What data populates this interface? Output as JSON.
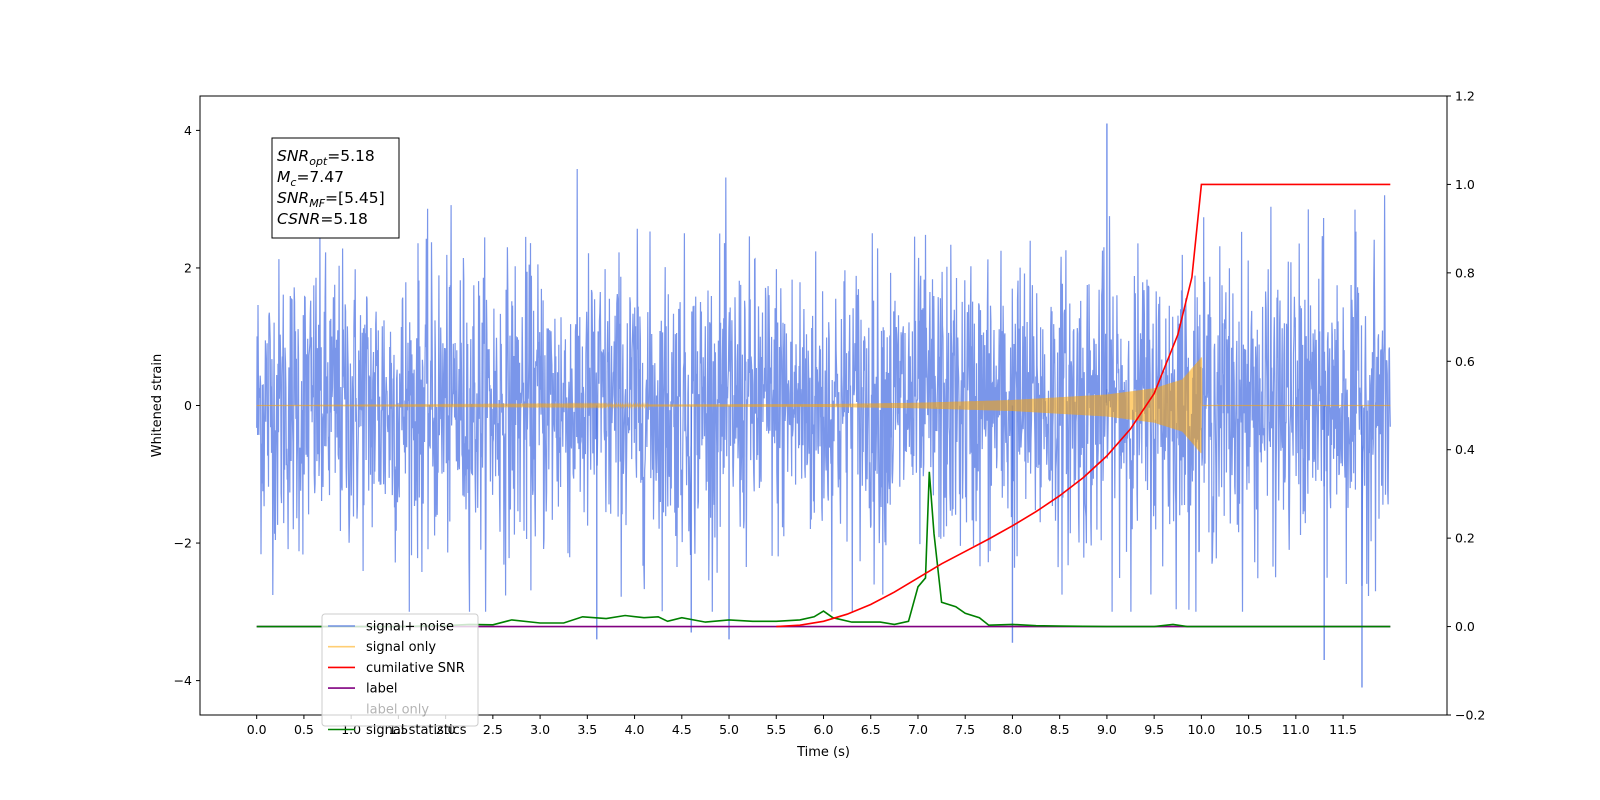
{
  "chart_data": {
    "type": "line",
    "xlabel": "Time (s)",
    "ylabel_left": "Whitened strain",
    "ylabel_right": "",
    "xlim": [
      -0.6,
      12.6
    ],
    "ylim_left": [
      -4.5,
      4.5
    ],
    "ylim_right": [
      -0.2,
      1.2
    ],
    "x_ticks": [
      "0.0",
      "0.5",
      "1.0",
      "1.5",
      "2.0",
      "2.5",
      "3.0",
      "3.5",
      "4.0",
      "4.5",
      "5.0",
      "5.5",
      "6.0",
      "6.5",
      "7.0",
      "7.5",
      "8.0",
      "8.5",
      "9.0",
      "9.5",
      "10.0",
      "10.5",
      "11.0",
      "11.5"
    ],
    "y_left_ticks": [
      "4",
      "2",
      "0",
      "−2",
      "−4"
    ],
    "y_right_ticks": [
      "1.2",
      "1.0",
      "0.8",
      "0.6",
      "0.4",
      "0.2",
      "0.0",
      "−0.2"
    ],
    "grid": false,
    "legend_position": "lower-left",
    "series": [
      {
        "name": "signal+ noise",
        "color": "#4169e1",
        "axis": "left",
        "description_points": {
          "x_range": [
            0.0,
            12.0
          ],
          "envelope": [
            -3.0,
            3.5
          ],
          "outliers": [
            [
              9.0,
              4.1
            ],
            [
              11.7,
              -4.1
            ],
            [
              11.3,
              -3.7
            ],
            [
              8.0,
              -3.45
            ],
            [
              3.6,
              -3.4
            ],
            [
              5.0,
              -3.4
            ],
            [
              4.6,
              -3.3
            ]
          ]
        }
      },
      {
        "name": "signal only",
        "color": "#ffa500",
        "axis": "left",
        "points": [
          [
            0.0,
            0.0
          ],
          [
            6.0,
            0.02
          ],
          [
            7.0,
            0.04
          ],
          [
            8.0,
            0.08
          ],
          [
            9.0,
            0.16
          ],
          [
            9.5,
            0.25
          ],
          [
            9.8,
            0.38
          ],
          [
            10.0,
            0.7
          ],
          [
            10.02,
            0.0
          ],
          [
            12.0,
            0.0
          ]
        ]
      },
      {
        "name": "cumilative SNR",
        "color": "#ff0000",
        "axis": "right",
        "points": [
          [
            5.5,
            0.0
          ],
          [
            5.75,
            0.003
          ],
          [
            6.0,
            0.012
          ],
          [
            6.25,
            0.028
          ],
          [
            6.5,
            0.05
          ],
          [
            6.75,
            0.078
          ],
          [
            7.0,
            0.11
          ],
          [
            7.25,
            0.142
          ],
          [
            7.5,
            0.17
          ],
          [
            7.75,
            0.198
          ],
          [
            8.0,
            0.228
          ],
          [
            8.25,
            0.26
          ],
          [
            8.5,
            0.296
          ],
          [
            8.75,
            0.337
          ],
          [
            9.0,
            0.386
          ],
          [
            9.25,
            0.447
          ],
          [
            9.5,
            0.527
          ],
          [
            9.75,
            0.66
          ],
          [
            9.9,
            0.79
          ],
          [
            10.0,
            1.0
          ],
          [
            12.0,
            1.0
          ]
        ]
      },
      {
        "name": "label",
        "color": "#800080",
        "axis": "right",
        "points": [
          [
            0.0,
            0.0
          ],
          [
            12.0,
            0.0
          ]
        ]
      },
      {
        "name": "label only",
        "color": "#800080",
        "axis": "right",
        "hidden": true,
        "points": []
      },
      {
        "name": "signal statistics",
        "color": "#008000",
        "axis": "right",
        "points": [
          [
            0.0,
            0.0
          ],
          [
            0.5,
            0.0
          ],
          [
            1.0,
            0.0
          ],
          [
            1.5,
            0.0
          ],
          [
            2.0,
            0.002
          ],
          [
            2.25,
            0.005
          ],
          [
            2.5,
            0.004
          ],
          [
            2.7,
            0.015
          ],
          [
            3.0,
            0.008
          ],
          [
            3.25,
            0.008
          ],
          [
            3.45,
            0.022
          ],
          [
            3.7,
            0.018
          ],
          [
            3.9,
            0.025
          ],
          [
            4.1,
            0.02
          ],
          [
            4.25,
            0.022
          ],
          [
            4.35,
            0.012
          ],
          [
            4.5,
            0.02
          ],
          [
            4.75,
            0.01
          ],
          [
            5.0,
            0.015
          ],
          [
            5.25,
            0.012
          ],
          [
            5.5,
            0.012
          ],
          [
            5.75,
            0.015
          ],
          [
            5.9,
            0.022
          ],
          [
            6.0,
            0.035
          ],
          [
            6.1,
            0.02
          ],
          [
            6.3,
            0.01
          ],
          [
            6.6,
            0.01
          ],
          [
            6.75,
            0.005
          ],
          [
            6.9,
            0.012
          ],
          [
            7.0,
            0.09
          ],
          [
            7.08,
            0.11
          ],
          [
            7.12,
            0.35
          ],
          [
            7.17,
            0.21
          ],
          [
            7.25,
            0.055
          ],
          [
            7.4,
            0.045
          ],
          [
            7.5,
            0.03
          ],
          [
            7.65,
            0.02
          ],
          [
            7.75,
            0.003
          ],
          [
            8.0,
            0.005
          ],
          [
            8.25,
            0.002
          ],
          [
            8.5,
            0.001
          ],
          [
            9.0,
            0.0
          ],
          [
            9.5,
            0.0
          ],
          [
            9.7,
            0.005
          ],
          [
            9.85,
            0.0
          ],
          [
            10.0,
            0.0
          ],
          [
            11.0,
            0.0
          ],
          [
            12.0,
            0.0
          ]
        ]
      }
    ],
    "annotations": [
      {
        "name": "SNR",
        "sub": "opt",
        "value": "=5.18"
      },
      {
        "name": "M",
        "sub": "c",
        "value": "=7.47"
      },
      {
        "name": "SNR",
        "sub": "MF",
        "value": "=[5.45]"
      },
      {
        "name": "CSNR",
        "sub": "",
        "value": "=5.18"
      }
    ]
  }
}
